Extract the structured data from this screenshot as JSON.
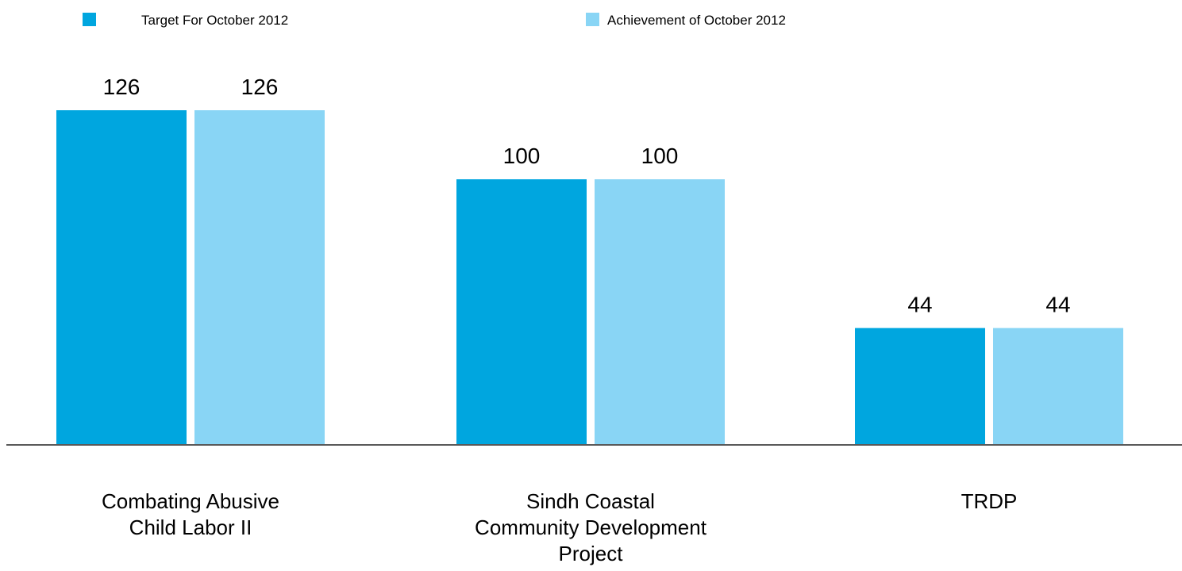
{
  "chart_data": {
    "type": "bar",
    "categories": [
      [
        "Combating Abusive",
        "Child Labor II"
      ],
      [
        "Sindh Coastal",
        "Community Development",
        "Project"
      ],
      [
        "TRDP"
      ]
    ],
    "series": [
      {
        "name": "Target For October 2012",
        "values": [
          126,
          100,
          44
        ],
        "color": "#00a6df"
      },
      {
        "name": "Achievement of October 2012",
        "values": [
          126,
          100,
          44
        ],
        "color": "#89d5f5"
      }
    ],
    "data_labels": true,
    "ylim": [
      0,
      126
    ],
    "grid": false,
    "legend_placement": "top",
    "axis_color": "#595959"
  }
}
